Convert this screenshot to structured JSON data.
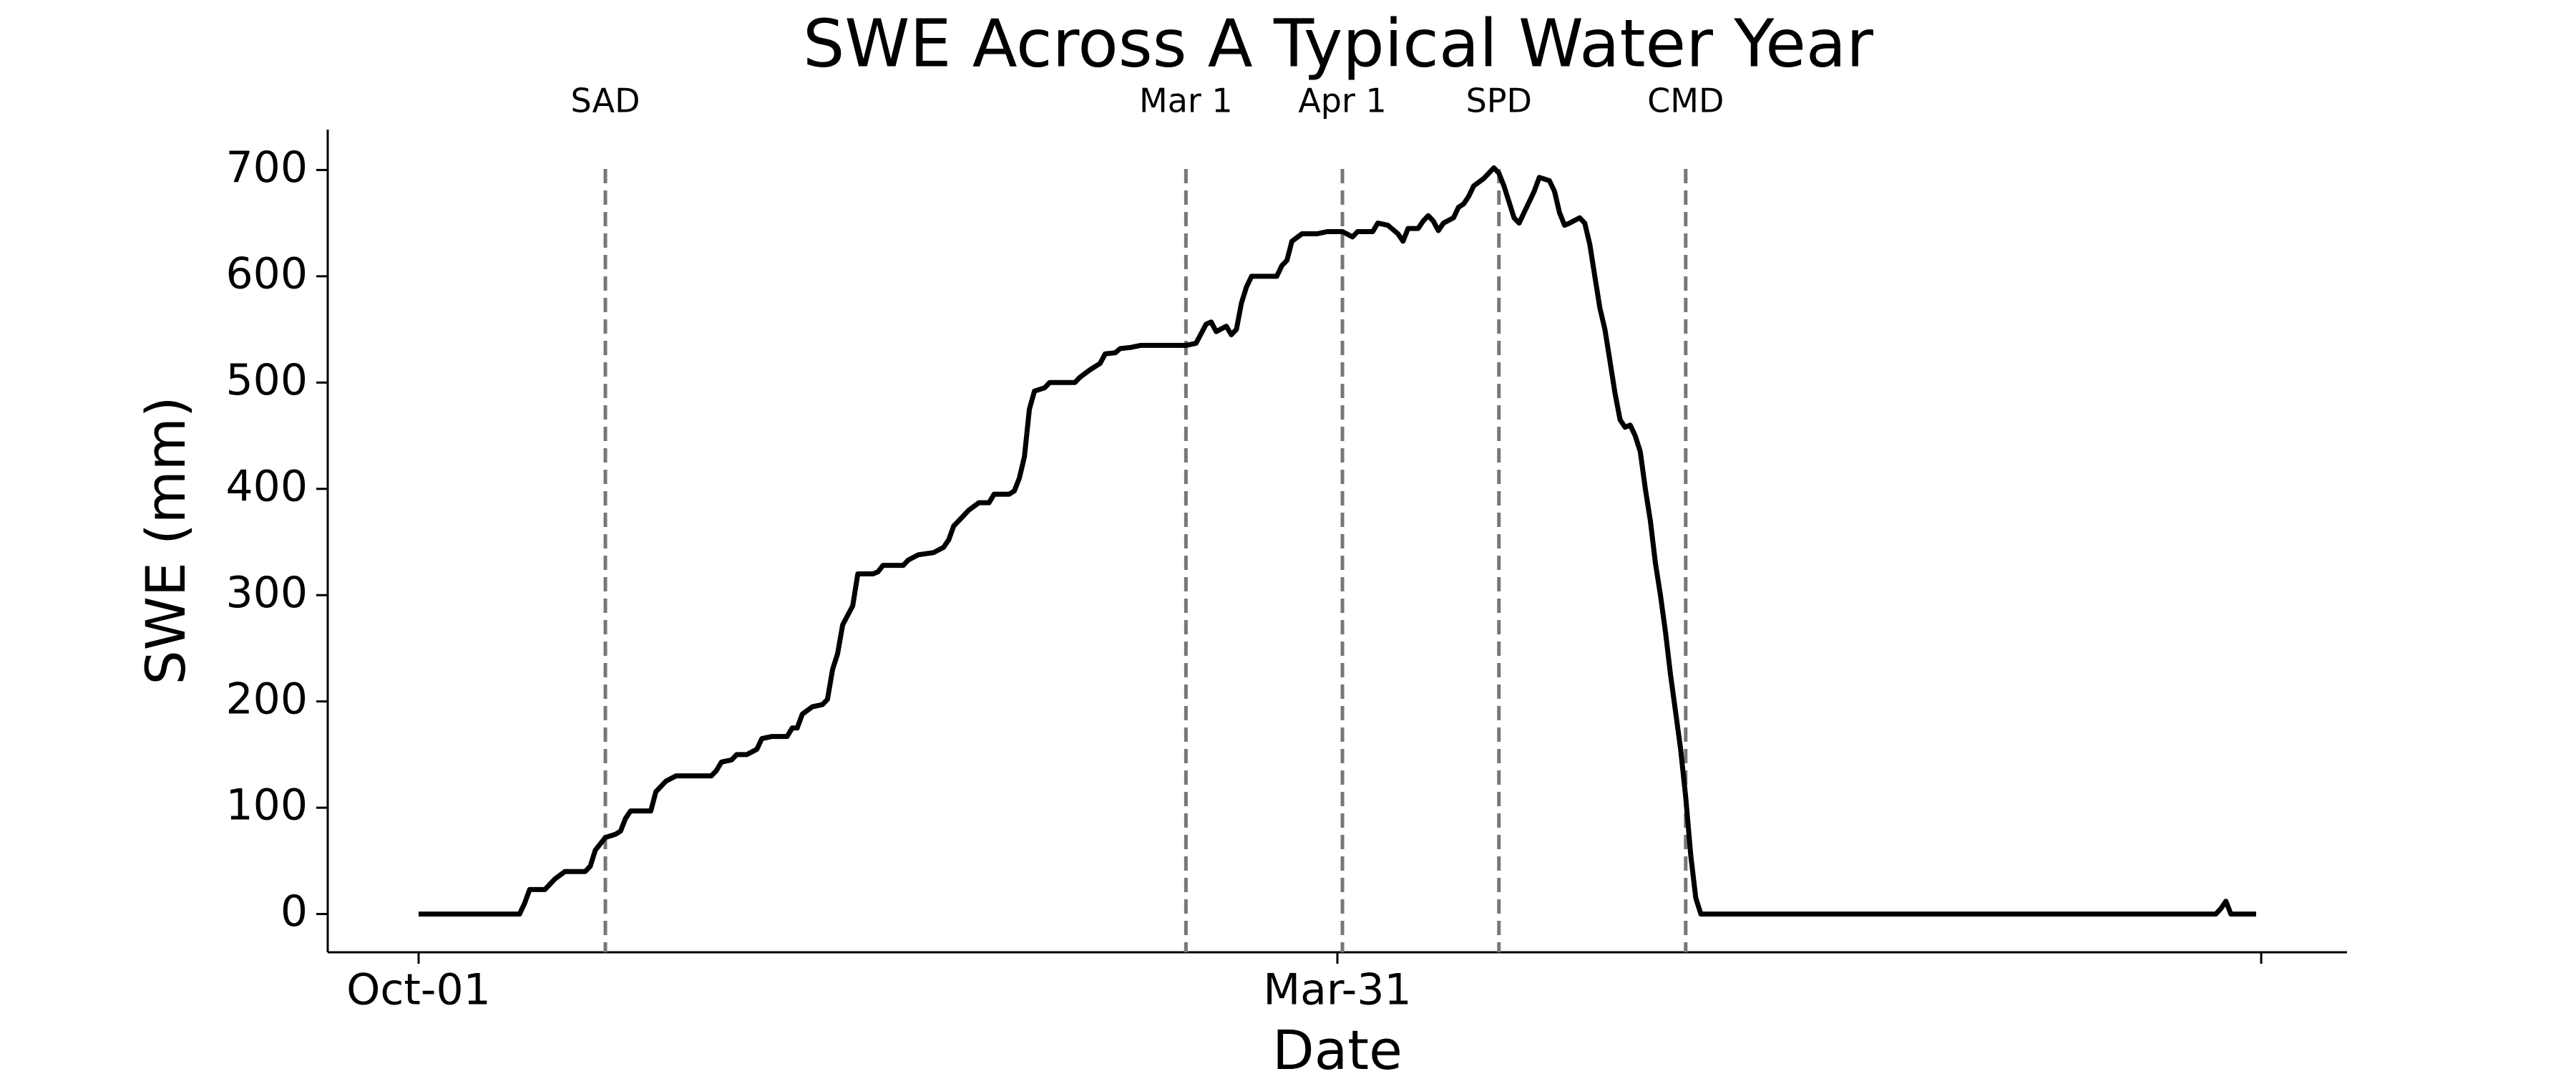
{
  "chart_data": {
    "type": "line",
    "title": "SWE Across A Typical Water Year",
    "xlabel": "Date",
    "ylabel": "SWE (mm)",
    "color": "#000000",
    "x": [
      0,
      20,
      21,
      22,
      25,
      27,
      29,
      33,
      34,
      35,
      37,
      39,
      40,
      41,
      42,
      46,
      47,
      49,
      51,
      58,
      59,
      60,
      62,
      63,
      65,
      67,
      68,
      70,
      73,
      74,
      75,
      76,
      78,
      80,
      81,
      82,
      83,
      84,
      86,
      87,
      90,
      91,
      92,
      96,
      97,
      99,
      102,
      104,
      105,
      106,
      108,
      109,
      111,
      113,
      114,
      117,
      118,
      119,
      120,
      121,
      122,
      124,
      125,
      130,
      131,
      133,
      135,
      136,
      138,
      139,
      141,
      143,
      152,
      154,
      156,
      157,
      158,
      160,
      161,
      162,
      163,
      164,
      165,
      170,
      171,
      172,
      173,
      175,
      178,
      180,
      183,
      185,
      186,
      189,
      190,
      192,
      194,
      195,
      196,
      198,
      199,
      200,
      201,
      202,
      203,
      205,
      206,
      207,
      208,
      209,
      211,
      213,
      214,
      215,
      216,
      217,
      218,
      219,
      220,
      221,
      222,
      224,
      225,
      226,
      227,
      228,
      230,
      231,
      232,
      233,
      234,
      235,
      236,
      237,
      238,
      239,
      240,
      241,
      242,
      243,
      244,
      245,
      246,
      247,
      248,
      249,
      250,
      251,
      252,
      253,
      254,
      356,
      357,
      358,
      359,
      364
    ],
    "values": [
      0,
      0,
      10,
      23,
      23,
      33,
      40,
      40,
      45,
      60,
      72,
      75,
      78,
      90,
      97,
      97,
      115,
      125,
      130,
      130,
      135,
      143,
      145,
      150,
      150,
      155,
      165,
      167,
      167,
      175,
      175,
      188,
      195,
      197,
      202,
      230,
      245,
      272,
      290,
      320,
      320,
      322,
      328,
      328,
      333,
      338,
      340,
      345,
      352,
      365,
      375,
      380,
      387,
      387,
      395,
      395,
      398,
      410,
      430,
      475,
      492,
      495,
      500,
      500,
      505,
      512,
      518,
      527,
      528,
      532,
      533,
      535,
      535,
      537,
      555,
      557,
      548,
      553,
      545,
      550,
      575,
      590,
      600,
      600,
      610,
      615,
      633,
      640,
      640,
      642,
      642,
      637,
      642,
      642,
      650,
      648,
      640,
      633,
      645,
      645,
      652,
      657,
      652,
      643,
      650,
      655,
      665,
      668,
      675,
      685,
      692,
      702,
      697,
      685,
      670,
      655,
      650,
      660,
      670,
      680,
      693,
      690,
      680,
      660,
      648,
      650,
      655,
      650,
      630,
      600,
      570,
      550,
      520,
      490,
      465,
      458,
      460,
      450,
      435,
      400,
      370,
      330,
      300,
      265,
      225,
      190,
      155,
      110,
      55,
      15,
      0,
      0,
      5,
      12,
      0,
      0
    ],
    "xlim": [
      -18,
      382
    ],
    "ylim": [
      -36,
      738
    ],
    "xticks": [
      {
        "value": 0,
        "label": "Oct-01"
      },
      {
        "value": 182,
        "label": "Mar-31"
      },
      {
        "value": 365,
        "label": null
      }
    ],
    "yticks": [
      0,
      100,
      200,
      300,
      400,
      500,
      600,
      700
    ],
    "vlines": [
      {
        "x": 37,
        "label": "SAD"
      },
      {
        "x": 152,
        "label": "Mar 1"
      },
      {
        "x": 183,
        "label": "Apr 1"
      },
      {
        "x": 214,
        "label": "SPD"
      },
      {
        "x": 251,
        "label": "CMD"
      }
    ],
    "vline_color": "#777777",
    "grid": false
  }
}
